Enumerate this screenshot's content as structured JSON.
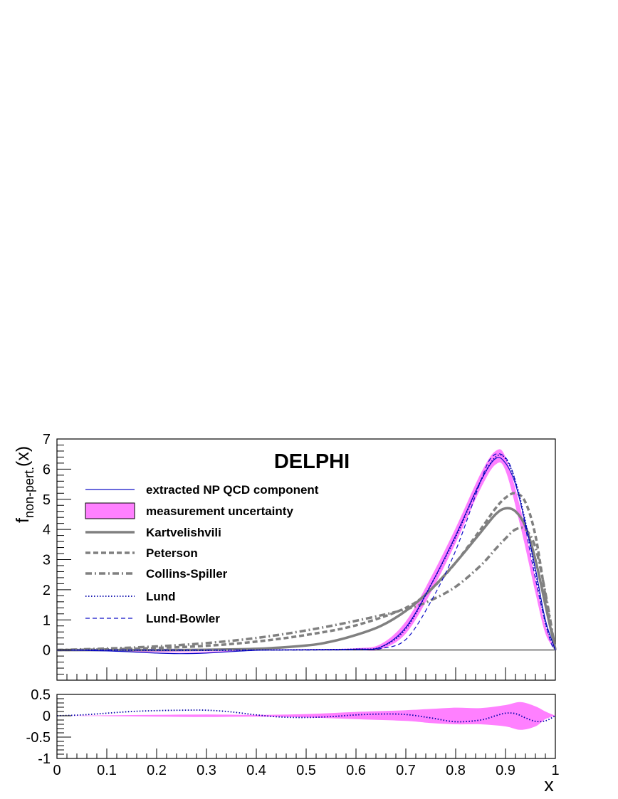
{
  "chart_data": [
    {
      "panel": "main",
      "type": "line",
      "title": "DELPHI",
      "xlabel": "x",
      "ylabel_main": "f",
      "ylabel_sub": "non-pert.",
      "ylabel_arg": "(x)",
      "xlim": [
        0,
        1
      ],
      "ylim": [
        -1,
        7
      ],
      "y_ticks": [
        0,
        1,
        2,
        3,
        4,
        5,
        6,
        7
      ],
      "y_tick_labels": [
        "0",
        "1",
        "2",
        "3",
        "4",
        "5",
        "6",
        "7"
      ],
      "grid": false,
      "legend_position": "top-left",
      "colors": {
        "np": "#1010c8",
        "band": "#ff80ff",
        "model": "#808080",
        "lund": "#0000aa"
      },
      "band": {
        "name": "measurement uncertainty",
        "x": [
          0,
          0.1,
          0.2,
          0.3,
          0.4,
          0.5,
          0.6,
          0.65,
          0.7,
          0.75,
          0.8,
          0.85,
          0.88,
          0.9,
          0.93,
          0.96,
          0.98,
          1.0
        ],
        "lower": [
          0,
          -0.04,
          -0.07,
          -0.08,
          -0.02,
          0.0,
          0.0,
          0.03,
          0.55,
          1.9,
          3.55,
          5.35,
          6.15,
          5.95,
          4.1,
          1.9,
          0.55,
          0
        ],
        "upper": [
          0,
          -0.02,
          -0.04,
          -0.05,
          0.01,
          0.03,
          0.06,
          0.2,
          0.95,
          2.4,
          4.05,
          5.85,
          6.6,
          6.4,
          4.7,
          2.35,
          0.8,
          0
        ]
      },
      "series": [
        {
          "name": "extracted NP QCD component",
          "style": "solid-thin",
          "x": [
            0,
            0.1,
            0.2,
            0.25,
            0.3,
            0.4,
            0.5,
            0.6,
            0.65,
            0.7,
            0.75,
            0.8,
            0.85,
            0.88,
            0.9,
            0.92,
            0.94,
            0.96,
            0.98,
            1.0
          ],
          "y": [
            0,
            -0.03,
            -0.1,
            -0.12,
            -0.1,
            -0.01,
            0.01,
            0.03,
            0.1,
            0.75,
            2.15,
            3.8,
            5.6,
            6.35,
            6.2,
            5.5,
            4.2,
            2.7,
            1.0,
            0
          ]
        },
        {
          "name": "Kartvelishvili",
          "style": "solid-thick",
          "x": [
            0,
            0.1,
            0.2,
            0.3,
            0.4,
            0.5,
            0.55,
            0.6,
            0.65,
            0.7,
            0.75,
            0.8,
            0.85,
            0.88,
            0.9,
            0.92,
            0.94,
            0.96,
            0.98,
            1.0
          ],
          "y": [
            0,
            0,
            0,
            0.01,
            0.04,
            0.15,
            0.28,
            0.5,
            0.8,
            1.3,
            2.0,
            2.9,
            3.9,
            4.5,
            4.7,
            4.6,
            4.1,
            3.0,
            1.5,
            0
          ]
        },
        {
          "name": "Peterson",
          "style": "dashed-thick",
          "x": [
            0,
            0.1,
            0.2,
            0.3,
            0.4,
            0.5,
            0.6,
            0.7,
            0.75,
            0.8,
            0.85,
            0.88,
            0.9,
            0.92,
            0.94,
            0.96,
            0.98,
            1.0
          ],
          "y": [
            0,
            0.02,
            0.07,
            0.14,
            0.28,
            0.5,
            0.82,
            1.4,
            2.0,
            2.9,
            4.0,
            4.7,
            5.05,
            5.2,
            4.9,
            3.8,
            1.8,
            0
          ]
        },
        {
          "name": "Collins-Spiller",
          "style": "dashdot-thick",
          "x": [
            0,
            0.1,
            0.2,
            0.3,
            0.4,
            0.5,
            0.6,
            0.7,
            0.75,
            0.8,
            0.85,
            0.88,
            0.9,
            0.92,
            0.94,
            0.96,
            0.98,
            1.0
          ],
          "y": [
            0,
            0.05,
            0.12,
            0.23,
            0.4,
            0.65,
            0.97,
            1.35,
            1.65,
            2.1,
            2.8,
            3.35,
            3.7,
            4.0,
            4.0,
            3.4,
            1.9,
            0
          ]
        },
        {
          "name": "Lund",
          "style": "dotted",
          "x": [
            0,
            0.1,
            0.2,
            0.3,
            0.4,
            0.5,
            0.6,
            0.65,
            0.7,
            0.75,
            0.8,
            0.85,
            0.88,
            0.9,
            0.92,
            0.94,
            0.96,
            0.98,
            1.0
          ],
          "y": [
            0,
            0,
            -0.01,
            -0.01,
            0,
            0.01,
            0.03,
            0.1,
            0.7,
            2.15,
            3.75,
            5.6,
            6.4,
            6.35,
            5.6,
            4.25,
            2.6,
            0.9,
            0
          ]
        },
        {
          "name": "Lund-Bowler",
          "style": "dashed-thin",
          "x": [
            0,
            0.1,
            0.2,
            0.3,
            0.4,
            0.5,
            0.6,
            0.65,
            0.7,
            0.75,
            0.8,
            0.85,
            0.87,
            0.89,
            0.91,
            0.93,
            0.95,
            0.97,
            0.99,
            1.0
          ],
          "y": [
            0,
            0,
            0,
            0,
            0,
            0,
            0.01,
            0.05,
            0.35,
            1.6,
            3.3,
            5.6,
            6.35,
            6.5,
            6.1,
            4.9,
            3.2,
            1.6,
            0.3,
            0
          ]
        }
      ]
    },
    {
      "panel": "ratio",
      "type": "line",
      "xlim": [
        0,
        1
      ],
      "ylim": [
        -1,
        0.5
      ],
      "y_ticks": [
        0.5,
        0,
        -0.5,
        -1
      ],
      "y_tick_labels": [
        "0.5",
        "0",
        "-0.5",
        "-1"
      ],
      "x_ticks": [
        0,
        0.1,
        0.2,
        0.3,
        0.4,
        0.5,
        0.6,
        0.7,
        0.8,
        0.9,
        1
      ],
      "x_tick_labels": [
        "0",
        "0.1",
        "0.2",
        "0.3",
        "0.4",
        "0.5",
        "0.6",
        "0.7",
        "0.8",
        "0.9",
        "1"
      ],
      "xlabel": "x",
      "band": {
        "x": [
          0,
          0.1,
          0.2,
          0.3,
          0.4,
          0.5,
          0.6,
          0.7,
          0.75,
          0.8,
          0.85,
          0.9,
          0.93,
          0.96,
          0.98,
          1.0
        ],
        "lower": [
          0,
          -0.01,
          -0.02,
          -0.03,
          -0.02,
          -0.04,
          -0.08,
          -0.12,
          -0.17,
          -0.2,
          -0.2,
          -0.25,
          -0.33,
          -0.25,
          -0.08,
          0
        ],
        "upper": [
          0,
          0.01,
          0.02,
          0.03,
          0.02,
          0.04,
          0.09,
          0.13,
          0.16,
          0.19,
          0.18,
          0.25,
          0.32,
          0.22,
          0.1,
          0
        ]
      },
      "series": [
        {
          "name": "Lund",
          "style": "dotted",
          "x": [
            0,
            0.05,
            0.1,
            0.15,
            0.2,
            0.25,
            0.3,
            0.35,
            0.4,
            0.45,
            0.5,
            0.55,
            0.6,
            0.65,
            0.7,
            0.75,
            0.8,
            0.85,
            0.88,
            0.9,
            0.92,
            0.94,
            0.96,
            0.98,
            1.0
          ],
          "y": [
            0,
            0.02,
            0.06,
            0.1,
            0.12,
            0.13,
            0.13,
            0.09,
            0.02,
            -0.03,
            -0.04,
            -0.02,
            0.02,
            0.04,
            0.03,
            -0.05,
            -0.14,
            -0.1,
            0.0,
            0.06,
            0.05,
            -0.05,
            -0.13,
            -0.12,
            0
          ]
        }
      ]
    }
  ]
}
